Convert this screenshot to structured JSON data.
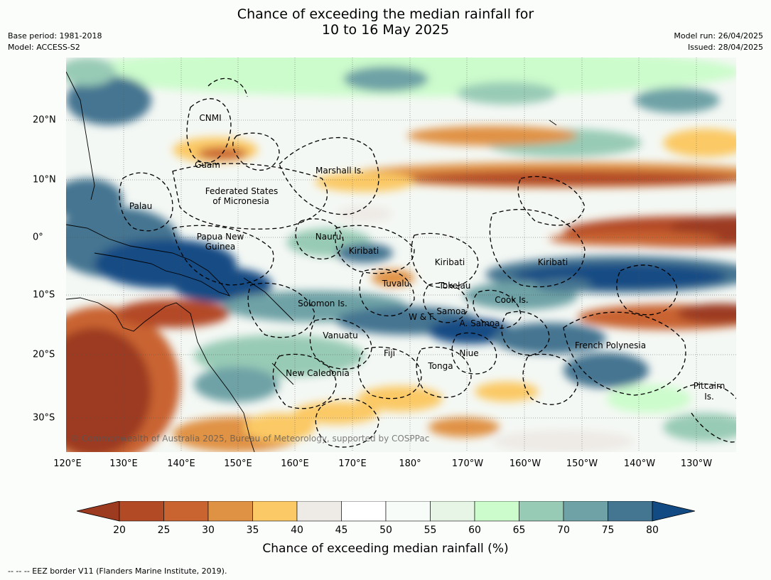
{
  "title": {
    "line1": "Chance of exceeding the median rainfall for",
    "line2": "10 to 16 May 2025"
  },
  "meta": {
    "base_period": "Base period: 1981-2018",
    "model": "Model: ACCESS-S2",
    "model_run": "Model run: 26/04/2025",
    "issued": "Issued: 28/04/2025"
  },
  "map": {
    "lon_ticks": [
      "120°E",
      "130°E",
      "140°E",
      "150°E",
      "160°E",
      "170°E",
      "180°",
      "170°W",
      "160°W",
      "150°W",
      "140°W",
      "130°W"
    ],
    "lat_ticks": [
      "20°N",
      "10°N",
      "0°",
      "10°S",
      "20°S",
      "30°S"
    ],
    "labels": {
      "cnmi": "CNMI",
      "guam": "Guam",
      "marshall": "Marshall Is.",
      "fsm1": "Federated States",
      "fsm2": "of Micronesia",
      "palau": "Palau",
      "png1": "Papua New",
      "png2": "Guinea",
      "nauru": "Nauru",
      "kiribati_w": "Kiribati",
      "kiribati_c": "Kiribati",
      "kiribati_e": "Kiribati",
      "tuvalu": "Tuvalu",
      "tokelau": "Tokelau",
      "cook": "Cook Is.",
      "solomon": "Solomon Is.",
      "wf": "W & F",
      "samoa": "Samoa",
      "asamoa": "A. Samoa",
      "vanuatu": "Vanuatu",
      "fiji": "Fiji",
      "niue": "Niue",
      "tonga": "Tonga",
      "french_polynesia": "French Polynesia",
      "new_caledonia": "New Caledonia",
      "pitcairn1": "Pitcairn",
      "pitcairn2": "Is."
    },
    "copyright": "© Commonwealth of Australia 2025, Bureau of Meteorology, supported by COSPPac"
  },
  "colorbar": {
    "labels": [
      "20",
      "25",
      "30",
      "35",
      "40",
      "45",
      "50",
      "55",
      "60",
      "65",
      "70",
      "75",
      "80"
    ],
    "colors": [
      "#9c3b20",
      "#b34a26",
      "#c96431",
      "#e09244",
      "#fbc965",
      "#eeeae6",
      "#ffffff",
      "#f8fcf8",
      "#e6f5e6",
      "#ccfccc",
      "#98cbb6",
      "#6ea2a6",
      "#447591",
      "#124b84"
    ],
    "title": "Chance of exceeding median rainfall (%)"
  },
  "footer": "--  --  -- EEZ border V11 (Flanders Marine Institute, 2019)."
}
